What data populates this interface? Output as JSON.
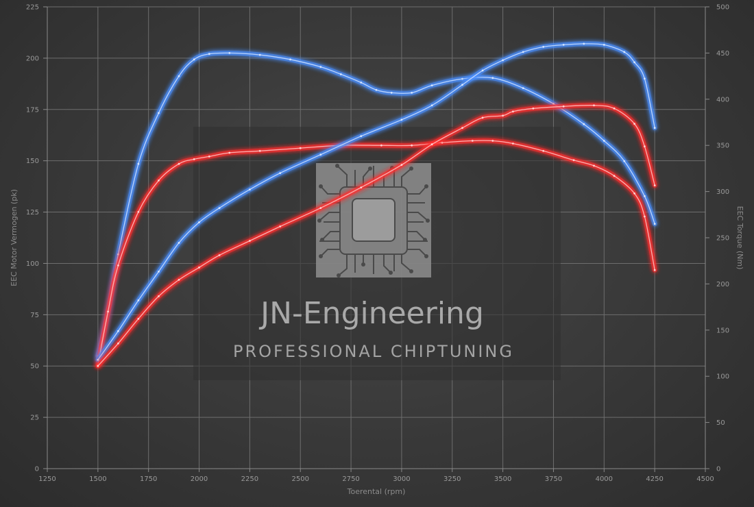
{
  "chart_data": {
    "type": "line",
    "title": "",
    "xlabel": "Toerental (rpm)",
    "ylabel_left": "EEC Motor Vermogen (pk)",
    "ylabel_right": "EEC Torque (Nm)",
    "xlim": [
      1250,
      4500
    ],
    "ylim_left": [
      0,
      225
    ],
    "ylim_right": [
      0,
      500
    ],
    "x_ticks": [
      1250,
      1500,
      1750,
      2000,
      2250,
      2500,
      2750,
      3000,
      3250,
      3500,
      3750,
      4000,
      4250,
      4500
    ],
    "y_left_ticks": [
      0,
      25,
      50,
      75,
      100,
      125,
      150,
      175,
      200,
      225
    ],
    "y_right_ticks": [
      0,
      50,
      100,
      150,
      200,
      250,
      300,
      350,
      400,
      450,
      500
    ],
    "grid": true,
    "colors": {
      "tuned": "#4a90ff",
      "stock": "#ff3030"
    },
    "series": [
      {
        "axis": "right",
        "color": "#4a90ff",
        "x": [
          1500,
          1550,
          1600,
          1700,
          1800,
          1900,
          1975,
          2050,
          2150,
          2300,
          2450,
          2600,
          2700,
          2800,
          2875,
          2950,
          3050,
          3150,
          3300,
          3450,
          3600,
          3750,
          3900,
          4000,
          4100,
          4200,
          4250
        ],
        "y": [
          122,
          170,
          232,
          330,
          385,
          425,
          443,
          449,
          450,
          448,
          443,
          435,
          427,
          418,
          410,
          407,
          407,
          415,
          422,
          423,
          412,
          395,
          373,
          355,
          333,
          295,
          265
        ]
      },
      {
        "axis": "right",
        "color": "#ff3030",
        "x": [
          1500,
          1550,
          1600,
          1700,
          1800,
          1900,
          1975,
          2050,
          2150,
          2300,
          2500,
          2700,
          2900,
          3050,
          3200,
          3350,
          3450,
          3550,
          3700,
          3850,
          3950,
          4050,
          4150,
          4200,
          4250
        ],
        "y": [
          112,
          170,
          220,
          278,
          312,
          330,
          335,
          338,
          342,
          344,
          347,
          350,
          350,
          350,
          353,
          355,
          355,
          352,
          344,
          334,
          328,
          317,
          298,
          273,
          215
        ]
      },
      {
        "axis": "left",
        "color": "#4a90ff",
        "x": [
          1500,
          1600,
          1700,
          1800,
          1900,
          2000,
          2100,
          2250,
          2400,
          2600,
          2800,
          3000,
          3150,
          3300,
          3400,
          3500,
          3600,
          3700,
          3800,
          3900,
          4000,
          4100,
          4150,
          4200,
          4250
        ],
        "y": [
          53,
          67,
          82,
          96,
          110,
          120,
          127,
          136,
          144,
          153,
          162,
          170,
          177,
          187,
          194,
          199,
          203,
          205.5,
          206.5,
          207,
          206.5,
          203,
          198,
          190,
          166
        ]
      },
      {
        "axis": "left",
        "color": "#ff3030",
        "x": [
          1500,
          1600,
          1700,
          1800,
          1900,
          2000,
          2100,
          2250,
          2400,
          2600,
          2800,
          3000,
          3150,
          3300,
          3400,
          3500,
          3550,
          3650,
          3800,
          3950,
          4050,
          4150,
          4200,
          4250
        ],
        "y": [
          50,
          61,
          73,
          84,
          92,
          98,
          104,
          111,
          118,
          127,
          137,
          148,
          158,
          166,
          171,
          172,
          174,
          175.5,
          176.5,
          177,
          175.5,
          168,
          157,
          138
        ]
      }
    ]
  },
  "watermark": {
    "title": "JN-Engineering",
    "subtitle": "PROFESSIONAL CHIPTUNING"
  }
}
